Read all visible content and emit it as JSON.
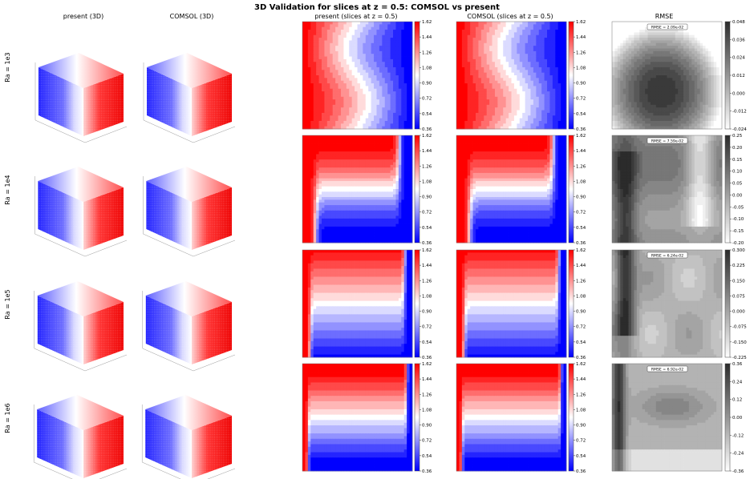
{
  "figure": {
    "title": "3D Validation for slices at z = 0.5: COMSOL vs present",
    "columns": [
      "present (3D)",
      "COMSOL (3D)",
      "present (slices at z = 0.5)",
      "COMSOL (slices at z = 0.5)",
      "RMSE"
    ],
    "rows": [
      "Ra = 1e3",
      "Ra = 1e4",
      "Ra = 1e5",
      "Ra = 1e6"
    ]
  },
  "colors": {
    "hot": "#ff1a1a",
    "cold": "#1a1aff",
    "mid": "#ffffff"
  },
  "chart_data": [
    {
      "type": "heatmap",
      "panel": "temperature slice colorbar (present and COMSOL, all Ra)",
      "colorbar_ticks": [
        "1.62",
        "1.44",
        "1.26",
        "1.08",
        "0.90",
        "0.72",
        "0.54",
        "0.36"
      ],
      "vmin": 0.36,
      "vmax": 1.62,
      "colormap": "bwr"
    },
    {
      "type": "heatmap",
      "panel": "RMSE Ra = 1e3",
      "rmse_label": "RMSE = 2.09e-02",
      "colorbar_ticks": [
        "0.048",
        "0.036",
        "0.024",
        "0.012",
        "0.000",
        "-0.012",
        "-0.024"
      ],
      "vmin": -0.03,
      "vmax": 0.054,
      "colormap": "gray"
    },
    {
      "type": "heatmap",
      "panel": "RMSE Ra = 1e4",
      "rmse_label": "RMSE = 7.59e-02",
      "colorbar_ticks": [
        "0.25",
        "0.20",
        "0.15",
        "0.10",
        "0.05",
        "0.00",
        "-0.05",
        "-0.10",
        "-0.15",
        "-0.20"
      ],
      "vmin": -0.2,
      "vmax": 0.27,
      "colormap": "gray"
    },
    {
      "type": "heatmap",
      "panel": "RMSE Ra = 1e5",
      "rmse_label": "RMSE = 6.24e-02",
      "colorbar_ticks": [
        "0.300",
        "0.225",
        "0.150",
        "0.075",
        "0.000",
        "-0.075",
        "-0.150",
        "-0.225"
      ],
      "vmin": -0.225,
      "vmax": 0.3,
      "colormap": "gray"
    },
    {
      "type": "heatmap",
      "panel": "RMSE Ra = 1e6",
      "rmse_label": "RMSE = 6.92e-02",
      "colorbar_ticks": [
        "0.36",
        "0.24",
        "0.12",
        "0.00",
        "-0.12",
        "-0.24",
        "-0.36"
      ],
      "vmin": -0.36,
      "vmax": 0.39,
      "colormap": "gray"
    }
  ]
}
